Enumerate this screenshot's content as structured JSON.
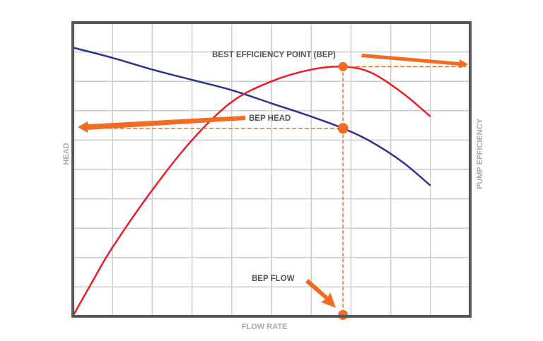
{
  "chart_data": {
    "type": "line",
    "title": "",
    "xlabel": "FLOW RATE",
    "ylabel": "HEAD",
    "y2label": "PUMP EFFICIENCY",
    "xlim": [
      0,
      10
    ],
    "ylim": [
      0,
      10
    ],
    "grid": true,
    "series": [
      {
        "key": "head",
        "color": "#2e3192",
        "points": [
          [
            0,
            9.15
          ],
          [
            1,
            8.8
          ],
          [
            2,
            8.4
          ],
          [
            3,
            8.05
          ],
          [
            4,
            7.7
          ],
          [
            5,
            7.25
          ],
          [
            6,
            6.8
          ],
          [
            6.8,
            6.4
          ],
          [
            7.5,
            5.95
          ],
          [
            8.3,
            5.25
          ],
          [
            9,
            4.45
          ]
        ]
      },
      {
        "key": "efficiency",
        "color": "#ed1c24",
        "points": [
          [
            0,
            0
          ],
          [
            0.5,
            1.2
          ],
          [
            1,
            2.35
          ],
          [
            2,
            4.3
          ],
          [
            3,
            6.0
          ],
          [
            4,
            7.3
          ],
          [
            5,
            8.0
          ],
          [
            6,
            8.4
          ],
          [
            6.8,
            8.5
          ],
          [
            7.5,
            8.3
          ],
          [
            8.3,
            7.6
          ],
          [
            9,
            6.8
          ]
        ]
      }
    ],
    "annotations": {
      "bep": {
        "label": "BEST EFFICIENCY POINT (BEP)",
        "x": 6.8,
        "y": 8.5
      },
      "bep_head": {
        "label": "BEP HEAD",
        "x": 6.8,
        "y": 6.4
      },
      "bep_flow": {
        "label": "BEP FLOW",
        "x": 6.8,
        "y": 0
      }
    },
    "colors": {
      "accent": "#f26b21",
      "frame": "#555555",
      "grid": "#cccccc"
    }
  }
}
